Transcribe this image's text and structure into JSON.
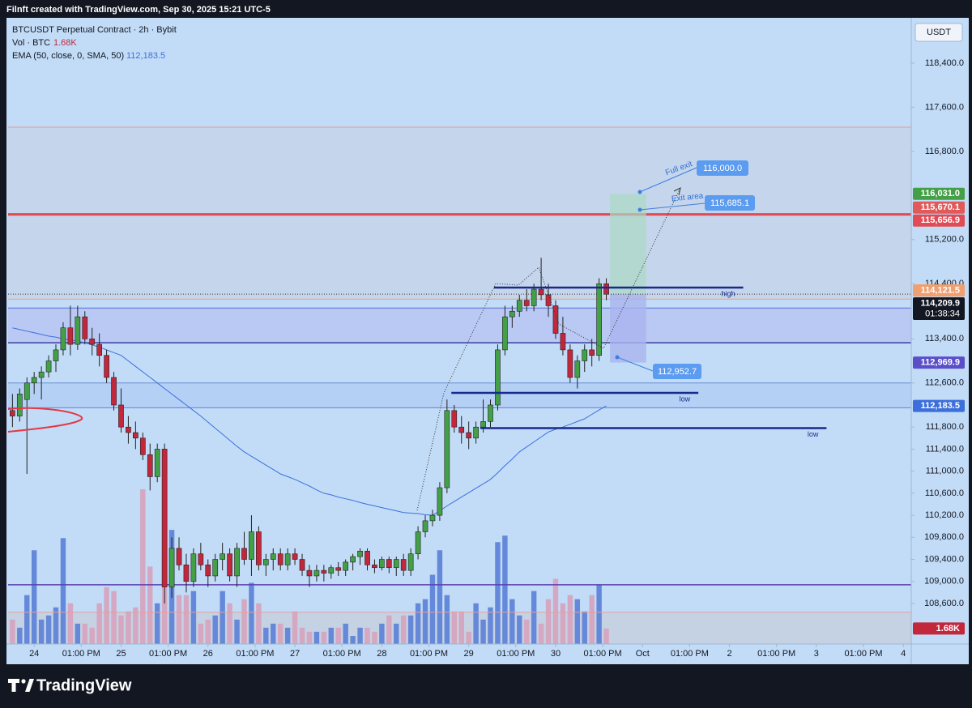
{
  "header": {
    "watermark": "Filnft created with TradingView.com, Sep 30, 2025 15:21 UTC-5",
    "symbol": "BTCUSDT Perpetual Contract · 2h · Bybit",
    "vol_label": "Vol · BTC",
    "ema_label": "EMA (50, close, 0, SMA, 50)",
    "currency": "USDT"
  },
  "chart_data": {
    "type": "candlestick",
    "xlim": [
      -0.6,
      124.1
    ],
    "xticks": [
      {
        "value": 3,
        "label": "24"
      },
      {
        "value": 9.5,
        "label": "01:00 PM"
      },
      {
        "value": 15,
        "label": "25"
      },
      {
        "value": 21.5,
        "label": "01:00 PM"
      },
      {
        "value": 27,
        "label": "26"
      },
      {
        "value": 33.5,
        "label": "01:00 PM"
      },
      {
        "value": 39,
        "label": "27"
      },
      {
        "value": 45.5,
        "label": "01:00 PM"
      },
      {
        "value": 51,
        "label": "28"
      },
      {
        "value": 57.5,
        "label": "01:00 PM"
      },
      {
        "value": 63,
        "label": "29"
      },
      {
        "value": 69.5,
        "label": "01:00 PM"
      },
      {
        "value": 75,
        "label": "30"
      },
      {
        "value": 81.5,
        "label": "01:00 PM"
      },
      {
        "value": 87,
        "label": "Oct"
      },
      {
        "value": 93.5,
        "label": "01:00 PM"
      },
      {
        "value": 99,
        "label": "2"
      },
      {
        "value": 105.5,
        "label": "01:00 PM"
      },
      {
        "value": 111,
        "label": "3"
      },
      {
        "value": 117.5,
        "label": "01:00 PM"
      },
      {
        "value": 123,
        "label": "4"
      }
    ],
    "ylim": [
      107865,
      119223
    ],
    "yticks": [
      {
        "value": 118400,
        "label": "118,400.0"
      },
      {
        "value": 117600,
        "label": "117,600.0"
      },
      {
        "value": 116800,
        "label": "116,800.0"
      },
      {
        "value": 115200,
        "label": "115,200.0"
      },
      {
        "value": 114400,
        "label": "114,400.0"
      },
      {
        "value": 113400,
        "label": "113,400.0"
      },
      {
        "value": 112600,
        "label": "112,600.0"
      },
      {
        "value": 111800,
        "label": "111,800.0"
      },
      {
        "value": 111400,
        "label": "111,400.0"
      },
      {
        "value": 111000,
        "label": "111,000.0"
      },
      {
        "value": 110600,
        "label": "110,600.0"
      },
      {
        "value": 110200,
        "label": "110,200.0"
      },
      {
        "value": 109800,
        "label": "109,800.0"
      },
      {
        "value": 109400,
        "label": "109,400.0"
      },
      {
        "value": 109000,
        "label": "109,000.0"
      },
      {
        "value": 108600,
        "label": "108,600.0"
      }
    ],
    "y2lim": [
      0,
      68000
    ],
    "grid": false,
    "up_color": "#43a047",
    "down_color": "#c2273c",
    "open": [
      112100,
      112000,
      112300,
      112600,
      112700,
      112800,
      113000,
      113200,
      113600,
      113300,
      113800,
      113400,
      113300,
      113100,
      112700,
      112200,
      111800,
      111700,
      111600,
      111300,
      110900,
      111400,
      108900,
      109600,
      109300,
      109000,
      109500,
      109300,
      109100,
      109400,
      109500,
      109100,
      109600,
      109400,
      109900,
      109300,
      109400,
      109500,
      109300,
      109500,
      109400,
      109200,
      109100,
      109200,
      109150,
      109250,
      109200,
      109350,
      109450,
      109550,
      109300,
      109250,
      109400,
      109250,
      109400,
      109200,
      109500,
      109900,
      110100,
      110200,
      110700,
      112100,
      111800,
      111700,
      111600,
      111800,
      111900,
      112200,
      113200,
      113800,
      113900,
      114100,
      114000,
      114300,
      114200,
      114000,
      113500,
      113200,
      112700,
      113000,
      113200,
      113100,
      114400
    ],
    "high": [
      112400,
      112500,
      112700,
      112800,
      112900,
      113100,
      113300,
      113700,
      114000,
      114000,
      113900,
      113600,
      113500,
      113200,
      112800,
      112500,
      112000,
      111900,
      111700,
      111500,
      111500,
      111500,
      109800,
      109800,
      109500,
      109600,
      109700,
      109400,
      109500,
      109700,
      109600,
      109700,
      109900,
      110200,
      110000,
      109500,
      109600,
      109600,
      109600,
      109600,
      109500,
      109300,
      109300,
      109300,
      109300,
      109350,
      109400,
      109500,
      109600,
      109600,
      109400,
      109450,
      109450,
      109450,
      109500,
      109600,
      110000,
      110200,
      110300,
      110800,
      112300,
      112200,
      112000,
      111900,
      111900,
      112300,
      112300,
      113300,
      114000,
      114000,
      114200,
      114300,
      114400,
      114870,
      114400,
      114100,
      113800,
      113300,
      113100,
      113300,
      113400,
      114500,
      114500
    ],
    "low": [
      111800,
      111900,
      110950,
      112400,
      112300,
      112700,
      112800,
      113100,
      113100,
      113200,
      113300,
      113100,
      112900,
      112600,
      112100,
      111700,
      111500,
      111400,
      111200,
      110650,
      110800,
      108600,
      108700,
      109200,
      108800,
      108900,
      109200,
      108900,
      109000,
      109200,
      109000,
      108900,
      109300,
      109100,
      109200,
      109100,
      109200,
      109200,
      109200,
      109300,
      109100,
      108900,
      109000,
      109000,
      109050,
      109100,
      109100,
      109200,
      109300,
      109200,
      109150,
      109200,
      109150,
      109100,
      109100,
      109100,
      109400,
      109800,
      110000,
      110100,
      110600,
      111700,
      111500,
      111400,
      111500,
      111700,
      111800,
      112100,
      113100,
      113600,
      113800,
      113900,
      113900,
      114100,
      113800,
      113400,
      113100,
      112600,
      112500,
      112800,
      112900,
      113000,
      114100
    ],
    "close": [
      112000,
      112400,
      112600,
      112700,
      112800,
      113000,
      113200,
      113600,
      113300,
      113800,
      113400,
      113300,
      113100,
      112700,
      112200,
      111800,
      111700,
      111600,
      111300,
      110900,
      111400,
      108900,
      109600,
      109300,
      109000,
      109500,
      109300,
      109100,
      109400,
      109500,
      109100,
      109600,
      109400,
      109900,
      109300,
      109400,
      109500,
      109300,
      109500,
      109400,
      109200,
      109100,
      109200,
      109150,
      109250,
      109200,
      109350,
      109450,
      109550,
      109300,
      109250,
      109400,
      109250,
      109400,
      109200,
      109500,
      109900,
      110100,
      110200,
      110700,
      112100,
      111800,
      111700,
      111600,
      111800,
      111900,
      112200,
      113200,
      113800,
      113900,
      114100,
      114000,
      114300,
      114200,
      114000,
      113500,
      113200,
      112700,
      113000,
      113200,
      113100,
      114400,
      114209.9
    ],
    "current_price": {
      "label": "114,209.9",
      "countdown": "01:38:34"
    },
    "volume": {
      "axis": "y2",
      "up_color": "#5b7fd6",
      "down_color": "#d6a2bb",
      "last_label": "1.68K",
      "values": [
        2650,
        1770,
        5310,
        10180,
        2650,
        3100,
        3980,
        11500,
        4420,
        2210,
        2210,
        1770,
        4420,
        6190,
        5750,
        3100,
        3540,
        3980,
        16810,
        8410,
        4420,
        10180,
        12390,
        5310,
        5310,
        5750,
        2210,
        2650,
        3100,
        5750,
        4420,
        2650,
        4870,
        6640,
        4420,
        1770,
        2210,
        2210,
        1770,
        3540,
        1770,
        1330,
        1330,
        1330,
        1770,
        1770,
        2210,
        880,
        1770,
        1770,
        1330,
        2210,
        3100,
        2210,
        3100,
        3100,
        4420,
        4870,
        7520,
        10180,
        5310,
        3540,
        3540,
        1330,
        4420,
        2650,
        3980,
        11060,
        11770,
        4870,
        3100,
        2650,
        5750,
        2210,
        4870,
        7080,
        4420,
        5310,
        4870,
        3540,
        5310,
        6460,
        1680
      ]
    },
    "ema": {
      "color": "#3d6fdc",
      "last_label": "112,183.5",
      "values": [
        113600,
        113570,
        113540,
        113510,
        113480,
        113450,
        113430,
        113400,
        113380,
        113360,
        113330,
        113290,
        113250,
        113200,
        113150,
        113100,
        113000,
        112900,
        112800,
        112700,
        112600,
        112500,
        112400,
        112300,
        112200,
        112100,
        112000,
        111890,
        111780,
        111670,
        111560,
        111450,
        111350,
        111270,
        111190,
        111110,
        111030,
        110950,
        110900,
        110850,
        110790,
        110730,
        110660,
        110600,
        110570,
        110530,
        110500,
        110470,
        110430,
        110400,
        110370,
        110340,
        110310,
        110280,
        110250,
        110240,
        110230,
        110210,
        110200,
        110280,
        110370,
        110450,
        110530,
        110610,
        110690,
        110770,
        110850,
        110970,
        111100,
        111220,
        111350,
        111440,
        111530,
        111620,
        111710,
        111760,
        111800,
        111850,
        111900,
        111950,
        112030,
        112110,
        112183.5
      ]
    },
    "zones": [
      {
        "from": 117240,
        "to": 114121.5,
        "color": "#c5d4e8"
      },
      {
        "from": 113960,
        "to": 113330,
        "color": "#b8c4f2"
      },
      {
        "from": 112600,
        "to": 112150,
        "color": "#b0cdf4"
      },
      {
        "from": 108440,
        "to": 107865,
        "color": "#c5d0de"
      }
    ],
    "levels": [
      {
        "value": 117240,
        "color": "#e39a9a",
        "width": 1
      },
      {
        "value": 115670.1,
        "color": "#e05a5a",
        "width": 1,
        "label": "115,670.1"
      },
      {
        "value": 115656.9,
        "color": "#e04b55",
        "width": 3,
        "label": "115,656.9"
      },
      {
        "value": 114121.5,
        "color": "#f0a070",
        "width": 1,
        "label": "114,121.5"
      },
      {
        "value": 113960,
        "color": "#5b6fd6",
        "width": 1
      },
      {
        "value": 113330,
        "color": "#3b3f9e",
        "width": 1.5
      },
      {
        "value": 112600,
        "color": "#6b8fd6",
        "width": 1
      },
      {
        "value": 112150,
        "color": "#6b7fd6",
        "width": 1
      },
      {
        "value": 108940,
        "color": "#5b3fb0",
        "width": 1.5
      },
      {
        "value": 108440,
        "color": "#e3a0a0",
        "width": 1
      }
    ],
    "segments": [
      {
        "value": 114330,
        "x": [
          66.5,
          100.9
        ],
        "label": "high"
      },
      {
        "value": 112420,
        "x": [
          60.6,
          94.7
        ],
        "label": "low"
      },
      {
        "value": 111780,
        "x": [
          64.6,
          112.4
        ],
        "label": "low"
      }
    ],
    "position": {
      "x": [
        82.5,
        87.5
      ],
      "target": {
        "value": 116031.0,
        "label": "116,031.0"
      },
      "stop": {
        "value": 112969.9,
        "label": "112,969.9"
      }
    },
    "annotations": [
      "Full exit",
      "Exit area",
      "116,000.0",
      "115,685.1",
      "112,952.7"
    ]
  },
  "footer": {
    "brand": "TradingView"
  }
}
